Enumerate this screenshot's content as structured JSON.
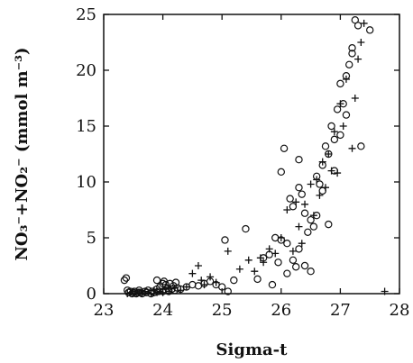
{
  "chart_data": {
    "type": "scatter",
    "title": "",
    "xlabel": "Sigma-t",
    "ylabel": "NO₃⁻+NO₂⁻ (mmol m⁻³)",
    "xlim": [
      23,
      28
    ],
    "ylim": [
      0,
      25
    ],
    "xticks": [
      23,
      24,
      25,
      26,
      27,
      28
    ],
    "yticks": [
      0,
      5,
      10,
      15,
      20,
      25
    ],
    "grid": false,
    "legend": "none",
    "series": [
      {
        "marker": "circle",
        "color": "#111111",
        "x": [
          23.35,
          23.38,
          23.4,
          23.42,
          23.45,
          23.48,
          23.5,
          23.52,
          23.55,
          23.58,
          23.6,
          23.62,
          23.65,
          23.7,
          23.72,
          23.75,
          23.8,
          23.82,
          23.85,
          23.9,
          23.92,
          23.95,
          24.0,
          24.02,
          24.05,
          24.08,
          24.1,
          24.12,
          24.15,
          24.18,
          24.2,
          24.22,
          24.25,
          24.3,
          24.4,
          24.5,
          24.6,
          24.7,
          24.8,
          24.9,
          25.0,
          25.05,
          25.2,
          25.4,
          25.6,
          25.7,
          25.8,
          25.9,
          26.0,
          26.05,
          26.1,
          26.15,
          26.2,
          26.25,
          26.3,
          26.35,
          26.4,
          26.45,
          26.5,
          26.55,
          26.6,
          26.65,
          26.7,
          26.75,
          26.8,
          26.85,
          26.9,
          26.95,
          27.0,
          27.05,
          27.1,
          27.15,
          27.2,
          27.25,
          27.3,
          27.35,
          27.5,
          25.85,
          25.95,
          26.0,
          26.1,
          26.2,
          26.3,
          26.4,
          26.5,
          26.6,
          26.7,
          26.8,
          26.9,
          27.0,
          27.1,
          27.2,
          23.9,
          24.0,
          24.1,
          25.1,
          26.3
        ],
        "y": [
          1.2,
          1.4,
          0.3,
          0.1,
          0.2,
          0.0,
          0.1,
          0.2,
          0.0,
          0.1,
          0.3,
          0.1,
          0.0,
          0.2,
          0.1,
          0.3,
          0.0,
          0.2,
          0.1,
          0.4,
          0.2,
          0.6,
          0.2,
          1.1,
          0.8,
          0.5,
          0.2,
          0.9,
          0.4,
          0.7,
          0.3,
          1.0,
          0.5,
          0.4,
          0.6,
          0.8,
          0.7,
          0.9,
          1.1,
          0.8,
          0.6,
          4.8,
          1.2,
          5.8,
          1.3,
          3.2,
          3.5,
          5.0,
          10.9,
          13.0,
          4.5,
          8.5,
          7.8,
          2.4,
          12.0,
          8.9,
          7.2,
          5.5,
          6.6,
          6.0,
          10.5,
          9.8,
          11.5,
          13.2,
          12.5,
          15.0,
          13.8,
          16.5,
          18.8,
          17.0,
          19.5,
          20.5,
          22.0,
          24.5,
          24.0,
          13.2,
          23.6,
          0.8,
          2.8,
          4.8,
          1.8,
          3.0,
          4.0,
          2.5,
          2.0,
          7.0,
          9.2,
          6.2,
          11.0,
          14.2,
          16.0,
          21.5,
          1.2,
          0.9,
          0.3,
          0.2,
          9.5
        ]
      },
      {
        "marker": "plus",
        "color": "#111111",
        "x": [
          23.4,
          23.45,
          23.5,
          23.55,
          23.6,
          23.65,
          23.7,
          23.75,
          23.8,
          23.85,
          23.9,
          23.95,
          24.0,
          24.05,
          24.1,
          24.2,
          24.3,
          24.4,
          24.5,
          24.6,
          24.65,
          24.7,
          24.8,
          24.9,
          25.1,
          25.3,
          25.45,
          25.55,
          25.65,
          25.7,
          25.8,
          25.9,
          26.0,
          26.1,
          26.2,
          26.25,
          26.3,
          26.35,
          26.4,
          26.5,
          26.55,
          26.6,
          26.65,
          26.7,
          26.75,
          26.8,
          26.85,
          26.9,
          26.95,
          27.0,
          27.05,
          27.1,
          27.2,
          27.25,
          27.3,
          27.35,
          27.4,
          27.75
        ],
        "y": [
          0.0,
          0.1,
          0.2,
          0.0,
          0.1,
          0.0,
          0.2,
          0.1,
          0.0,
          0.3,
          0.1,
          0.2,
          0.1,
          0.4,
          0.2,
          0.5,
          0.3,
          0.6,
          1.8,
          2.5,
          1.2,
          0.8,
          1.5,
          1.0,
          3.8,
          2.2,
          3.0,
          2.0,
          3.2,
          2.8,
          4.0,
          3.6,
          5.0,
          7.5,
          3.8,
          8.2,
          6.0,
          4.5,
          8.0,
          9.8,
          7.0,
          10.2,
          8.8,
          11.8,
          9.5,
          12.5,
          11.0,
          14.5,
          10.8,
          17.0,
          15.0,
          19.2,
          13.0,
          17.5,
          21.0,
          22.5,
          24.2,
          0.2
        ]
      }
    ]
  }
}
